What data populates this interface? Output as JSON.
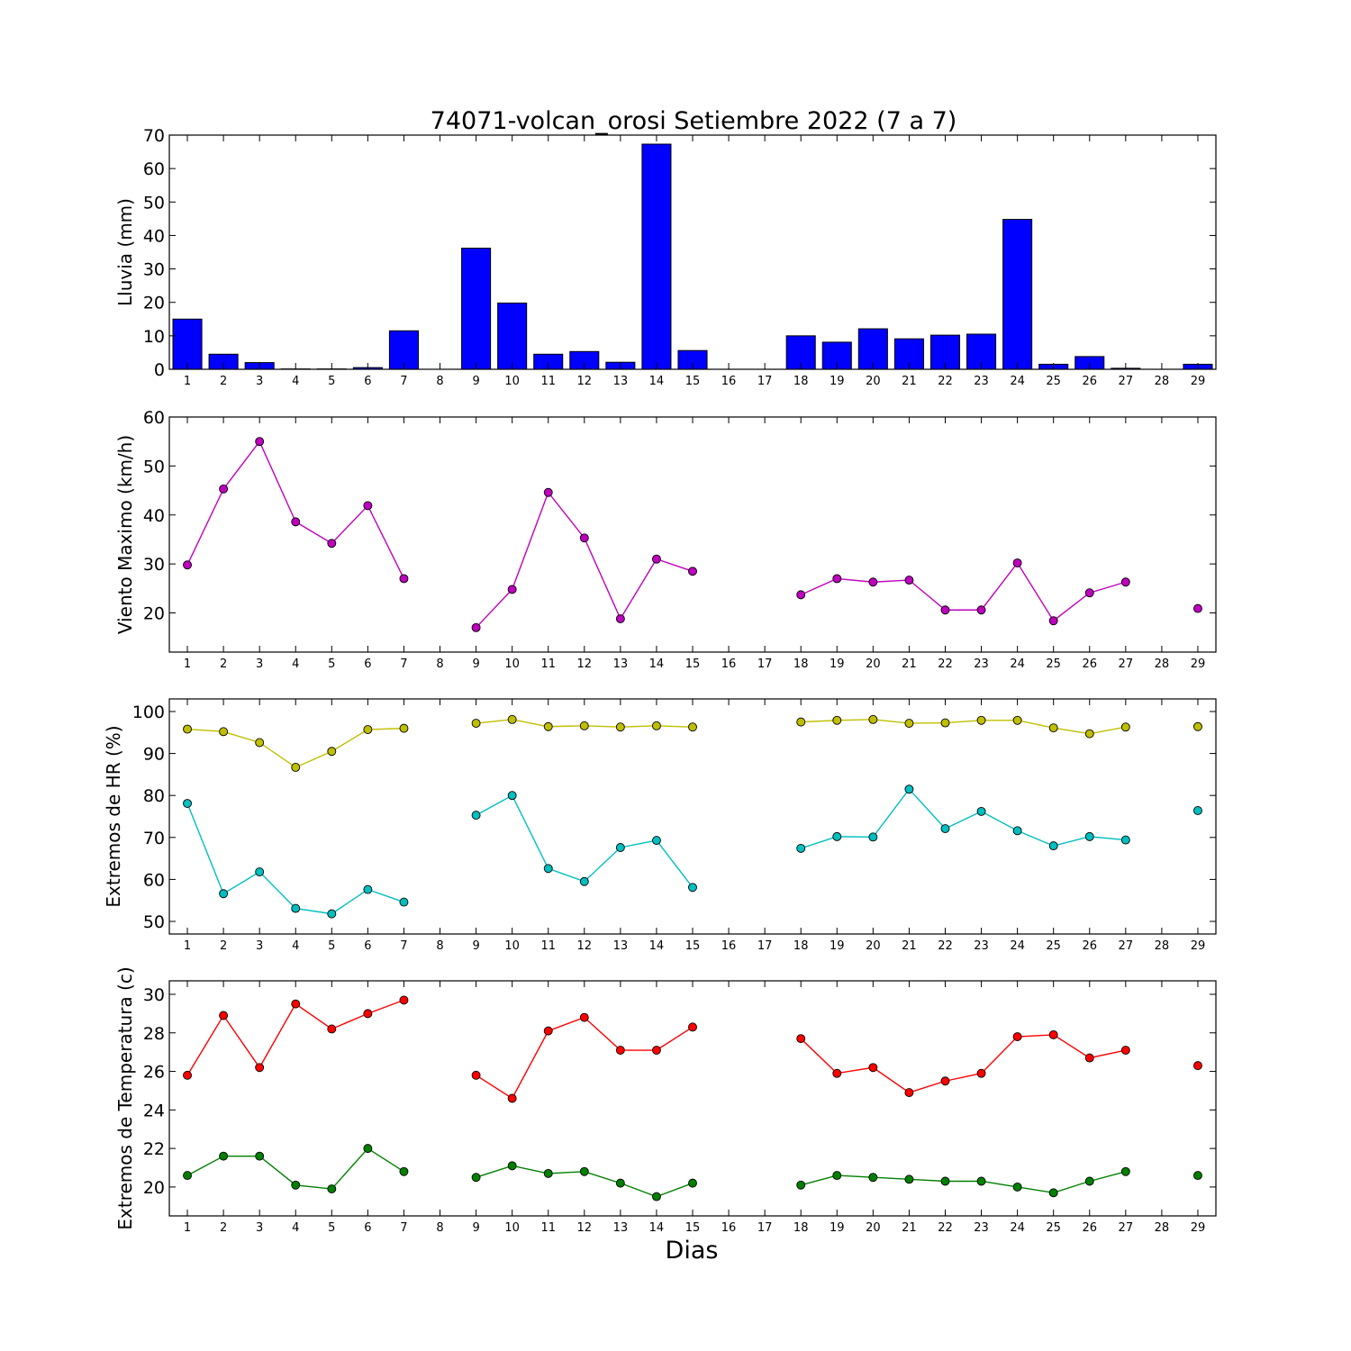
{
  "figure": {
    "title": "74071-volcan_orosi Setiembre 2022  (7 a 7)",
    "xlabel": "Dias"
  },
  "chart_data": [
    {
      "id": "lluvia",
      "type": "bar",
      "ylabel": "Lluvia (mm)",
      "ylim": [
        0,
        70
      ],
      "yticks": [
        0,
        10,
        20,
        30,
        40,
        50,
        60,
        70
      ],
      "xlim": [
        0.5,
        29.5
      ],
      "xticks": [
        1,
        2,
        3,
        4,
        5,
        6,
        7,
        8,
        9,
        10,
        11,
        12,
        13,
        14,
        15,
        16,
        17,
        18,
        19,
        20,
        21,
        22,
        23,
        24,
        25,
        26,
        27,
        28,
        29
      ],
      "grid": false,
      "series": [
        {
          "color": "#0000ff",
          "x": [
            1,
            2,
            3,
            4,
            5,
            6,
            7,
            9,
            10,
            11,
            12,
            13,
            14,
            15,
            18,
            19,
            20,
            21,
            22,
            23,
            24,
            25,
            26,
            27,
            29
          ],
          "values": [
            15.0,
            4.5,
            2.0,
            0.1,
            0.1,
            0.5,
            11.5,
            36.2,
            19.8,
            4.5,
            5.3,
            2.1,
            67.3,
            5.6,
            10.0,
            8.1,
            12.1,
            9.1,
            10.2,
            10.5,
            44.8,
            1.5,
            3.8,
            0.3,
            1.5
          ]
        }
      ]
    },
    {
      "id": "viento",
      "type": "line",
      "ylabel": "Viento Maximo (km/h)",
      "ylim": [
        12,
        60
      ],
      "yticks": [
        20,
        30,
        40,
        50,
        60
      ],
      "xlim": [
        0.5,
        29.5
      ],
      "xticks": [
        1,
        2,
        3,
        4,
        5,
        6,
        7,
        8,
        9,
        10,
        11,
        12,
        13,
        14,
        15,
        16,
        17,
        18,
        19,
        20,
        21,
        22,
        23,
        24,
        25,
        26,
        27,
        28,
        29
      ],
      "grid": false,
      "series": [
        {
          "color": "#bf00bf",
          "x": [
            1,
            2,
            3,
            4,
            5,
            6,
            7,
            8,
            9,
            10,
            11,
            12,
            13,
            14,
            15,
            16,
            17,
            18,
            19,
            20,
            21,
            22,
            23,
            24,
            25,
            26,
            27,
            28,
            29
          ],
          "values": [
            29.8,
            45.3,
            55.0,
            38.6,
            34.2,
            41.9,
            27.0,
            null,
            17.0,
            24.8,
            44.6,
            35.3,
            18.8,
            31.0,
            28.5,
            null,
            null,
            23.7,
            27.0,
            26.3,
            26.7,
            20.6,
            20.6,
            30.2,
            18.4,
            24.1,
            26.3,
            null,
            20.9
          ]
        }
      ]
    },
    {
      "id": "hr",
      "type": "line",
      "ylabel": "Extremos de HR (%)",
      "ylim": [
        47,
        103
      ],
      "yticks": [
        50,
        60,
        70,
        80,
        90,
        100
      ],
      "xlim": [
        0.5,
        29.5
      ],
      "xticks": [
        1,
        2,
        3,
        4,
        5,
        6,
        7,
        8,
        9,
        10,
        11,
        12,
        13,
        14,
        15,
        16,
        17,
        18,
        19,
        20,
        21,
        22,
        23,
        24,
        25,
        26,
        27,
        28,
        29
      ],
      "grid": false,
      "series": [
        {
          "color": "#bfbf00",
          "x": [
            1,
            2,
            3,
            4,
            5,
            6,
            7,
            8,
            9,
            10,
            11,
            12,
            13,
            14,
            15,
            16,
            17,
            18,
            19,
            20,
            21,
            22,
            23,
            24,
            25,
            26,
            27,
            28,
            29
          ],
          "values": [
            95.8,
            95.2,
            92.6,
            86.7,
            90.5,
            95.7,
            96.0,
            null,
            97.2,
            98.1,
            96.4,
            96.6,
            96.3,
            96.6,
            96.3,
            null,
            null,
            97.5,
            97.9,
            98.1,
            97.2,
            97.3,
            97.9,
            97.9,
            96.1,
            94.7,
            96.3,
            null,
            96.4
          ]
        },
        {
          "color": "#00bfbf",
          "x": [
            1,
            2,
            3,
            4,
            5,
            6,
            7,
            8,
            9,
            10,
            11,
            12,
            13,
            14,
            15,
            16,
            17,
            18,
            19,
            20,
            21,
            22,
            23,
            24,
            25,
            26,
            27,
            28,
            29
          ],
          "values": [
            78.1,
            56.6,
            61.8,
            53.1,
            51.8,
            57.6,
            54.6,
            null,
            75.3,
            80.0,
            62.6,
            59.5,
            67.6,
            69.3,
            58.1,
            null,
            null,
            67.4,
            70.2,
            70.1,
            81.5,
            72.1,
            76.2,
            71.6,
            68.0,
            70.2,
            69.4,
            null,
            76.4
          ]
        }
      ]
    },
    {
      "id": "temperatura",
      "type": "line",
      "ylabel": "Extremos de Temperatura (c)",
      "ylim": [
        18.5,
        30.7
      ],
      "yticks": [
        20,
        22,
        24,
        26,
        28,
        30
      ],
      "xlim": [
        0.5,
        29.5
      ],
      "xticks": [
        1,
        2,
        3,
        4,
        5,
        6,
        7,
        8,
        9,
        10,
        11,
        12,
        13,
        14,
        15,
        16,
        17,
        18,
        19,
        20,
        21,
        22,
        23,
        24,
        25,
        26,
        27,
        28,
        29
      ],
      "grid": false,
      "series": [
        {
          "color": "#ff0000",
          "x": [
            1,
            2,
            3,
            4,
            5,
            6,
            7,
            8,
            9,
            10,
            11,
            12,
            13,
            14,
            15,
            16,
            17,
            18,
            19,
            20,
            21,
            22,
            23,
            24,
            25,
            26,
            27,
            28,
            29
          ],
          "values": [
            25.8,
            28.9,
            26.2,
            29.5,
            28.2,
            29.0,
            29.7,
            null,
            25.8,
            24.6,
            28.1,
            28.8,
            27.1,
            27.1,
            28.3,
            null,
            null,
            27.7,
            25.9,
            26.2,
            24.9,
            25.5,
            25.9,
            27.8,
            27.9,
            26.7,
            27.1,
            null,
            26.3
          ]
        },
        {
          "color": "#008000",
          "x": [
            1,
            2,
            3,
            4,
            5,
            6,
            7,
            8,
            9,
            10,
            11,
            12,
            13,
            14,
            15,
            16,
            17,
            18,
            19,
            20,
            21,
            22,
            23,
            24,
            25,
            26,
            27,
            28,
            29
          ],
          "values": [
            20.6,
            21.6,
            21.6,
            20.1,
            19.9,
            22.0,
            20.8,
            null,
            20.5,
            21.1,
            20.7,
            20.8,
            20.2,
            19.5,
            20.2,
            null,
            null,
            20.1,
            20.6,
            20.5,
            20.4,
            20.3,
            20.3,
            20.0,
            19.7,
            20.3,
            20.8,
            null,
            20.6
          ]
        }
      ]
    }
  ]
}
